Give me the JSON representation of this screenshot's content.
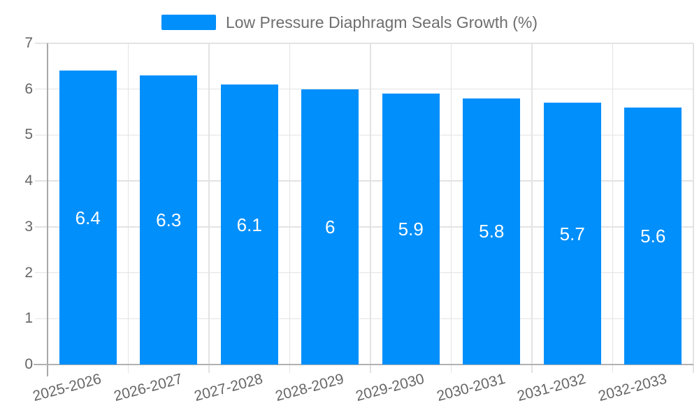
{
  "legend": {
    "series_label": "Low Pressure Diaphragm Seals Growth (%)"
  },
  "colors": {
    "bar": "#008FFB",
    "grid": "#e3e3e3",
    "axis": "#b1b1b1",
    "tick_label": "#666666",
    "value_label": "#ffffff",
    "legend_text": "#6e6e6e"
  },
  "chart_data": {
    "type": "bar",
    "title": "Low Pressure Diaphragm Seals Growth (%)",
    "categories": [
      "2025-2026",
      "2026-2027",
      "2027-2028",
      "2028-2029",
      "2029-2030",
      "2030-2031",
      "2031-2032",
      "2032-2033"
    ],
    "values": [
      6.4,
      6.3,
      6.1,
      6,
      5.9,
      5.8,
      5.7,
      5.6
    ],
    "value_labels": [
      "6.4",
      "6.3",
      "6.1",
      "6",
      "5.9",
      "5.8",
      "5.7",
      "5.6"
    ],
    "xlabel": "",
    "ylabel": "",
    "ylim": [
      0,
      7
    ],
    "yticks": [
      "0",
      "1",
      "2",
      "3",
      "4",
      "5",
      "6",
      "7"
    ],
    "grid": true,
    "legend_position": "top",
    "bar_label_position": "center",
    "x_label_rotation_deg": -15
  }
}
